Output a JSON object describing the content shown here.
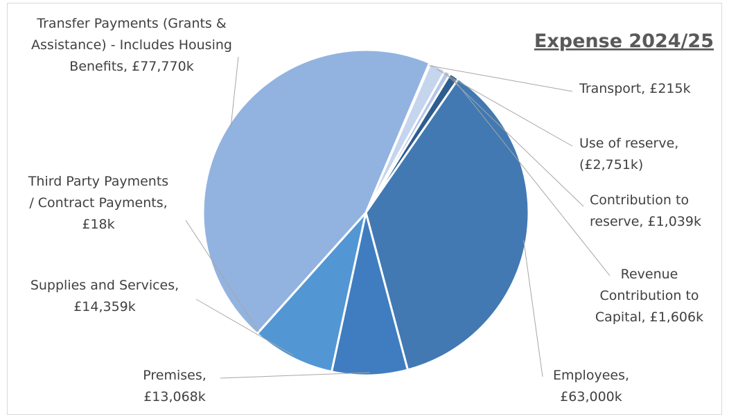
{
  "chart_data": {
    "type": "pie",
    "title": "Expense 2024/25",
    "slices": [
      {
        "name": "Transport",
        "value": 215,
        "color": "#dae3f3",
        "label_lines": [
          "Transport, £215k"
        ]
      },
      {
        "name": "Use of reserve",
        "value": 2751,
        "color": "#c5d5ee",
        "label_lines": [
          "Use of reserve,",
          "(£2,751k)"
        ]
      },
      {
        "name": "Contribution to reserve",
        "value": 1039,
        "color": "#b4c7e7",
        "label_lines": [
          "Contribution to",
          "reserve, £1,039k"
        ]
      },
      {
        "name": "Revenue Contribution to Capital",
        "value": 1606,
        "color": "#2e5d8f",
        "label_lines": [
          "Revenue",
          "Contribution to",
          "Capital, £1,606k"
        ]
      },
      {
        "name": "Employees",
        "value": 63000,
        "color": "#4279b2",
        "label_lines": [
          "Employees,",
          "£63,000k"
        ]
      },
      {
        "name": "Premises",
        "value": 13068,
        "color": "#3f7dc0",
        "label_lines": [
          "Premises,",
          "£13,068k"
        ]
      },
      {
        "name": "Supplies and Services",
        "value": 14359,
        "color": "#5396d4",
        "label_lines": [
          "Supplies  and Services,",
          "£14,359k"
        ]
      },
      {
        "name": "Third Party Payments / Contract Payments",
        "value": 18,
        "color": "#c9d8ee",
        "label_lines": [
          "Third Party Payments",
          "/ Contract Payments,",
          "£18k"
        ]
      },
      {
        "name": "Transfer Payments (Grants & Assistance) - Includes Housing Benefits",
        "value": 77770,
        "color": "#92b3df",
        "label_lines": [
          "Transfer Payments (Grants &",
          "Assistance) - Includes Housing",
          "Benefits, £77,770k"
        ]
      }
    ],
    "legend": "none"
  }
}
